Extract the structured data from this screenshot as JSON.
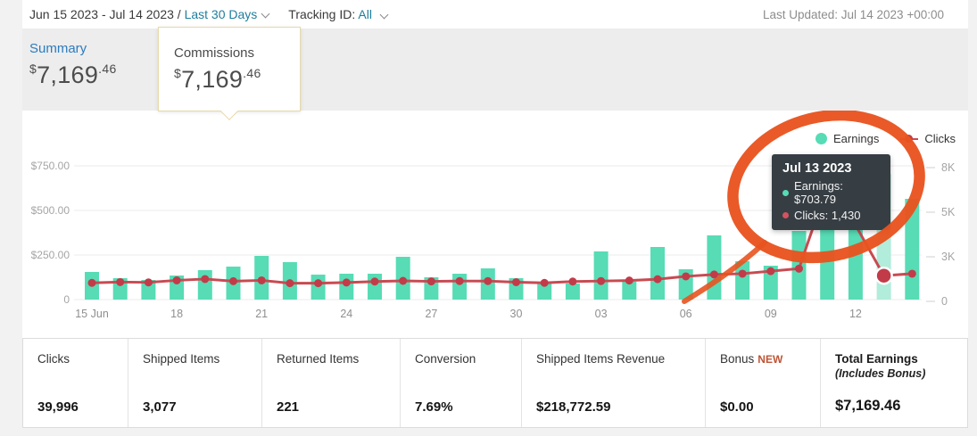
{
  "header": {
    "date_range": "Jun 15 2023 - Jul 14 2023 /",
    "range_preset": "Last 30 Days",
    "tracking_label": "Tracking ID:",
    "tracking_value": "All",
    "last_updated": "Last Updated: Jul 14 2023 +00:00"
  },
  "summary_tab": {
    "label": "Summary",
    "currency": "$",
    "amount_int": "7,169",
    "amount_dec": ".46"
  },
  "commissions_popup": {
    "label": "Commissions",
    "currency": "$",
    "amount_int": "7,169",
    "amount_dec": ".46"
  },
  "legend": {
    "earnings": "Earnings",
    "clicks": "Clicks"
  },
  "tooltip": {
    "title": "Jul 13 2023",
    "earnings_row": "Earnings: $703.79",
    "clicks_row": "Clicks: 1,430"
  },
  "stats": [
    {
      "label": "Clicks",
      "value": "39,996"
    },
    {
      "label": "Shipped Items",
      "value": "3,077"
    },
    {
      "label": "Returned Items",
      "value": "221"
    },
    {
      "label": "Conversion",
      "value": "7.69%"
    },
    {
      "label": "Shipped Items Revenue",
      "value": "$218,772.59"
    },
    {
      "label": "Bonus",
      "badge": "NEW",
      "value": "$0.00"
    },
    {
      "label": "Total Earnings",
      "sublabel": "(Includes Bonus)",
      "value": "$7,169.46"
    }
  ],
  "colors": {
    "teal": "#57dcb5",
    "teal_highlight": "#b2ecda",
    "line_red": "#c84a52",
    "dot_red": "#c23b49",
    "annotation_orange": "#e8531f",
    "tooltip_bg": "#363e44",
    "link_blue": "#1d7e9e",
    "summary_blue": "#2b7cbd",
    "new_badge": "#bf5335",
    "grid_line": "#ebebeb",
    "axis_label": "#a5a5a5",
    "x_label": "#8f8f8f"
  },
  "chart_data": {
    "type": "bar+line",
    "title": "",
    "x": [
      "Jun 15",
      "Jun 16",
      "Jun 17",
      "Jun 18",
      "Jun 19",
      "Jun 20",
      "Jun 21",
      "Jun 22",
      "Jun 23",
      "Jun 24",
      "Jun 25",
      "Jun 26",
      "Jun 27",
      "Jun 28",
      "Jun 29",
      "Jun 30",
      "Jul 01",
      "Jul 02",
      "Jul 03",
      "Jul 04",
      "Jul 05",
      "Jul 06",
      "Jul 07",
      "Jul 08",
      "Jul 09",
      "Jul 10",
      "Jul 11",
      "Jul 12",
      "Jul 13",
      "Jul 14"
    ],
    "series": [
      {
        "name": "Earnings",
        "type": "bar",
        "axis": "left",
        "values": [
          155,
          120,
          110,
          135,
          165,
          185,
          245,
          210,
          140,
          145,
          145,
          240,
          125,
          145,
          175,
          120,
          95,
          90,
          270,
          100,
          295,
          170,
          360,
          215,
          190,
          385,
          480,
          460,
          703.79,
          565
        ]
      },
      {
        "name": "Clicks",
        "type": "line",
        "axis": "right",
        "values": [
          1000,
          1050,
          1030,
          1150,
          1230,
          1100,
          1150,
          980,
          980,
          1020,
          1080,
          1120,
          1090,
          1110,
          1110,
          1040,
          1000,
          1080,
          1110,
          1140,
          1220,
          1390,
          1500,
          1550,
          1700,
          1850,
          6800,
          4450,
          1430,
          1550
        ]
      }
    ],
    "left_axis": {
      "tick_labels": [
        "$750.00",
        "$500.00",
        "$250.00",
        "0"
      ],
      "tick_values": [
        750,
        500,
        250,
        0
      ],
      "units_per_gridline": 250
    },
    "right_axis": {
      "tick_labels": [
        "8K",
        "5K",
        "3K",
        "0"
      ],
      "tick_values": [
        8000,
        5333,
        2667,
        0
      ],
      "units_per_gridline": 2667
    },
    "x_tick_indices": [
      0,
      3,
      6,
      9,
      12,
      15,
      18,
      21,
      24,
      27
    ],
    "x_tick_labels": [
      "15 Jun",
      "18",
      "21",
      "24",
      "27",
      "30",
      "03",
      "06",
      "09",
      "12"
    ],
    "highlight_index": 28,
    "grid": true,
    "legend_position": "top-right"
  }
}
